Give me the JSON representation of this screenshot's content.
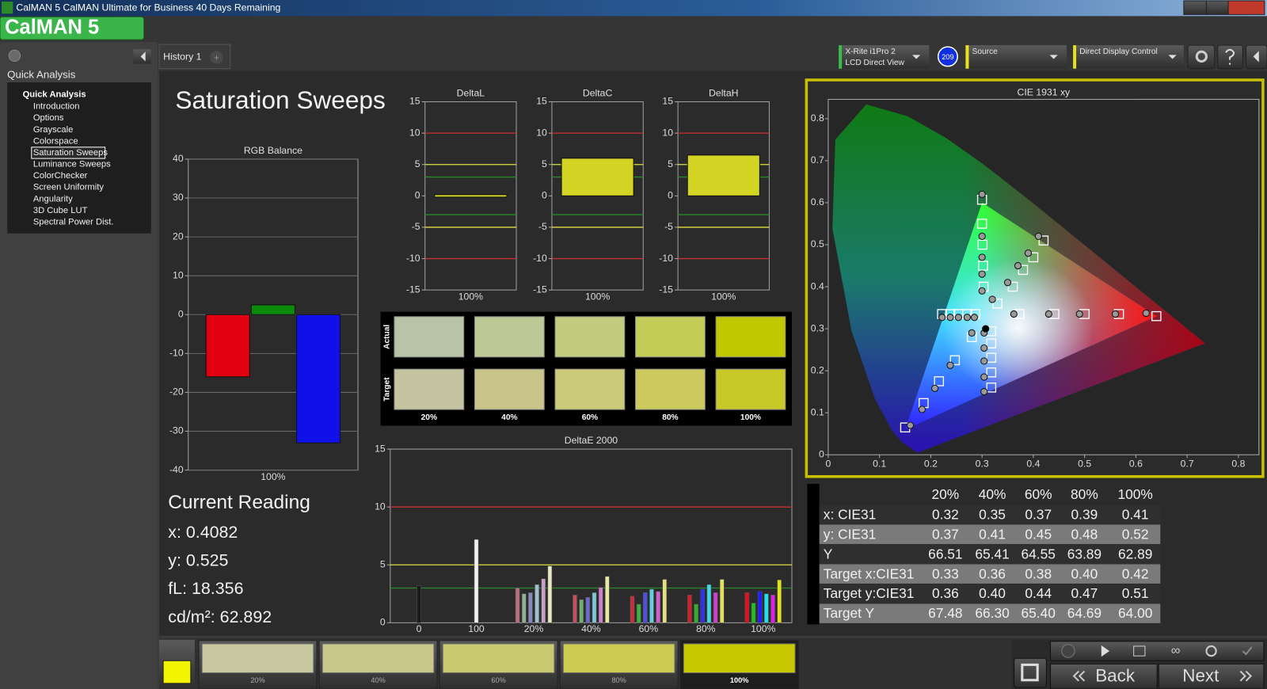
{
  "window": {
    "title": "CalMAN 5 CalMAN Ultimate for Business 40 Days Remaining",
    "logo": "CalMAN 5"
  },
  "sidebar": {
    "heading": "Quick Analysis",
    "tree_root": "Quick Analysis",
    "items": [
      "Introduction",
      "Options",
      "Grayscale",
      "Colorspace",
      "Saturation Sweeps",
      "Luminance Sweeps",
      "ColorChecker",
      "Screen Uniformity",
      "Angularity",
      "3D Cube LUT",
      "Spectral Power Dist."
    ],
    "selected": 4
  },
  "tabs": {
    "history": "History 1",
    "add": "+"
  },
  "toolbar": {
    "meter_name": "X-Rite i1Pro 2",
    "meter_mode": "LCD Direct View",
    "badge": "209",
    "source": "Source",
    "display": "Direct Display Control"
  },
  "page_title": "Saturation Sweeps",
  "chart_data": [
    {
      "type": "bar",
      "title": "RGB Balance",
      "categories": [
        "100%"
      ],
      "series": [
        {
          "color": "#e00010",
          "values": [
            -16
          ]
        },
        {
          "color": "#0a8a0a",
          "values": [
            2.5
          ]
        },
        {
          "color": "#1010e8",
          "values": [
            -33
          ]
        }
      ],
      "ylim": [
        -40,
        40
      ],
      "yticks": [
        -40,
        -30,
        -20,
        -10,
        0,
        10,
        20,
        30,
        40
      ],
      "grid": true
    },
    {
      "type": "bar",
      "title": "DeltaL",
      "categories": [
        "100%"
      ],
      "values": [
        -0.3
      ],
      "color": "#d4d424",
      "ylim": [
        -15,
        15
      ],
      "yticks": [
        -15,
        -10,
        -5,
        0,
        5,
        10,
        15
      ],
      "grid": false,
      "reference_lines": [
        {
          "value": 10,
          "color": "#c83232"
        },
        {
          "value": 5,
          "color": "#e0e040"
        },
        {
          "value": 3,
          "color": "#2a8a2a"
        },
        {
          "value": -3,
          "color": "#2a8a2a"
        },
        {
          "value": -5,
          "color": "#e0e040"
        },
        {
          "value": -10,
          "color": "#c83232"
        }
      ]
    },
    {
      "type": "bar",
      "title": "DeltaC",
      "categories": [
        "100%"
      ],
      "values": [
        6
      ],
      "color": "#d4d424",
      "ylim": [
        -15,
        15
      ],
      "yticks": [
        -15,
        -10,
        -5,
        0,
        5,
        10,
        15
      ],
      "grid": false,
      "reference_lines": [
        {
          "value": 10,
          "color": "#c83232"
        },
        {
          "value": 5,
          "color": "#e0e040"
        },
        {
          "value": 3,
          "color": "#2a8a2a"
        },
        {
          "value": -3,
          "color": "#2a8a2a"
        },
        {
          "value": -5,
          "color": "#e0e040"
        },
        {
          "value": -10,
          "color": "#c83232"
        }
      ]
    },
    {
      "type": "bar",
      "title": "DeltaH",
      "categories": [
        "100%"
      ],
      "values": [
        6.5
      ],
      "color": "#d4d424",
      "ylim": [
        -15,
        15
      ],
      "yticks": [
        -15,
        -10,
        -5,
        0,
        5,
        10,
        15
      ],
      "grid": false,
      "reference_lines": [
        {
          "value": 10,
          "color": "#c83232"
        },
        {
          "value": 5,
          "color": "#e0e040"
        },
        {
          "value": 3,
          "color": "#2a8a2a"
        },
        {
          "value": -3,
          "color": "#2a8a2a"
        },
        {
          "value": -5,
          "color": "#e0e040"
        },
        {
          "value": -10,
          "color": "#c83232"
        }
      ]
    },
    {
      "type": "grouped_bar",
      "title": "DeltaE 2000",
      "categories": [
        "0",
        "100",
        "20%",
        "40%",
        "60%",
        "80%",
        "100%"
      ],
      "values": [
        [
          3.2
        ],
        [
          7.2
        ],
        [
          3.0,
          2.5,
          2.6,
          3.3,
          3.8,
          4.9
        ],
        [
          2.4,
          2.0,
          2.2,
          2.6,
          3.05,
          4.0
        ],
        [
          2.3,
          1.6,
          2.6,
          2.9,
          2.7,
          3.75
        ],
        [
          2.4,
          1.6,
          2.9,
          3.3,
          2.6,
          3.75
        ],
        [
          2.6,
          1.7,
          2.7,
          2.5,
          2.4,
          3.7
        ]
      ],
      "colors": [
        [
          "#1a1a1a"
        ],
        [
          "#f0f0f0"
        ],
        [
          "#b87080",
          "#90b090",
          "#8888c0",
          "#a0c0d0",
          "#c8a0c8",
          "#e8e8c0"
        ],
        [
          "#c05060",
          "#70b070",
          "#6a6ad0",
          "#80c8d8",
          "#d080d0",
          "#e8e8a0"
        ],
        [
          "#c83040",
          "#40b040",
          "#5050e0",
          "#60d0e0",
          "#d060d0",
          "#e0e080"
        ],
        [
          "#d02030",
          "#30b030",
          "#3030f0",
          "#40d8e8",
          "#d040d0",
          "#e0e060"
        ],
        [
          "#e01020",
          "#20c020",
          "#2020ff",
          "#20e0f0",
          "#e020e0",
          "#e0e020"
        ]
      ],
      "ylim": [
        0,
        15
      ],
      "yticks": [
        0,
        5,
        10,
        15
      ],
      "grid": false,
      "reference_lines": [
        {
          "value": 10,
          "color": "#c83232"
        },
        {
          "value": 5,
          "color": "#e0e040"
        },
        {
          "value": 3,
          "color": "#2a8a2a"
        }
      ]
    },
    {
      "type": "scatter",
      "title": "CIE 1931 xy",
      "xlim": [
        0,
        0.84
      ],
      "ylim": [
        0,
        0.846
      ],
      "xticks": [
        0,
        0.1,
        0.2,
        0.3,
        0.4,
        0.5,
        0.6,
        0.7,
        0.8
      ],
      "yticks": [
        0,
        0.1,
        0.2,
        0.3,
        0.4,
        0.5,
        0.6,
        0.7,
        0.8
      ],
      "series": [
        {
          "marker": "square",
          "color": "#ffffff",
          "x": [
            0.373,
            0.441,
            0.5,
            0.567,
            0.64
          ],
          "values": [
            0.335,
            0.335,
            0.335,
            0.335,
            0.33
          ]
        },
        {
          "marker": "circle",
          "color": "#999999",
          "x": [
            0.362,
            0.43,
            0.49,
            0.56,
            0.62
          ],
          "values": [
            0.335,
            0.335,
            0.335,
            0.335,
            0.337
          ]
        },
        {
          "marker": "square",
          "color": "#ffffff",
          "x": [
            0.303,
            0.302,
            0.301,
            0.3,
            0.3
          ],
          "values": [
            0.4,
            0.45,
            0.5,
            0.55,
            0.607
          ]
        },
        {
          "marker": "circle",
          "color": "#999999",
          "x": [
            0.3,
            0.3,
            0.3,
            0.3,
            0.3
          ],
          "values": [
            0.39,
            0.43,
            0.47,
            0.52,
            0.62
          ]
        },
        {
          "marker": "square",
          "color": "#ffffff",
          "x": [
            0.28,
            0.247,
            0.216,
            0.186,
            0.15
          ],
          "values": [
            0.28,
            0.225,
            0.175,
            0.123,
            0.065
          ]
        },
        {
          "marker": "circle",
          "color": "#999999",
          "x": [
            0.28,
            0.238,
            0.208,
            0.183,
            0.16
          ],
          "values": [
            0.29,
            0.213,
            0.158,
            0.108,
            0.07
          ]
        },
        {
          "marker": "square",
          "color": "#ffffff",
          "x": [
            0.287,
            0.271,
            0.254,
            0.238,
            0.222
          ],
          "values": [
            0.335,
            0.335,
            0.335,
            0.335,
            0.335
          ]
        },
        {
          "marker": "circle",
          "color": "#999999",
          "x": [
            0.285,
            0.271,
            0.254,
            0.238,
            0.222
          ],
          "values": [
            0.327,
            0.327,
            0.327,
            0.327,
            0.327
          ]
        },
        {
          "marker": "square",
          "color": "#ffffff",
          "x": [
            0.318,
            0.318,
            0.318,
            0.318,
            0.318
          ],
          "values": [
            0.294,
            0.265,
            0.231,
            0.196,
            0.16
          ]
        },
        {
          "marker": "circle",
          "color": "#999999",
          "x": [
            0.304,
            0.304,
            0.304,
            0.304,
            0.304
          ],
          "values": [
            0.29,
            0.254,
            0.223,
            0.185,
            0.15
          ]
        },
        {
          "marker": "square",
          "color": "#ffffff",
          "x": [
            0.33,
            0.36,
            0.38,
            0.4,
            0.42
          ],
          "values": [
            0.36,
            0.4,
            0.44,
            0.47,
            0.51
          ]
        },
        {
          "marker": "circle",
          "color": "#999999",
          "x": [
            0.32,
            0.35,
            0.37,
            0.39,
            0.41
          ],
          "values": [
            0.37,
            0.41,
            0.45,
            0.48,
            0.52
          ]
        },
        {
          "marker": "circle",
          "color": "#000000",
          "x": [
            0.307
          ],
          "values": [
            0.3
          ]
        }
      ]
    }
  ],
  "swatches": {
    "row_labels": [
      "Actual",
      "Target"
    ],
    "columns": [
      "20%",
      "40%",
      "60%",
      "80%",
      "100%"
    ],
    "actual_colors": [
      "#b8c4a8",
      "#bcc896",
      "#c2cb7e",
      "#c4cc58",
      "#c2c800"
    ],
    "target_colors": [
      "#c4c4a0",
      "#c8c48a",
      "#cbca78",
      "#ccca5c",
      "#c8c828"
    ]
  },
  "current_reading": {
    "title": "Current Reading",
    "lines": [
      "x: 0.4082",
      "y: 0.525",
      "fL: 18.356",
      "cd/m²: 62.892"
    ]
  },
  "table": {
    "header": [
      "20%",
      "40%",
      "60%",
      "80%",
      "100%"
    ],
    "rows": [
      {
        "label": "x: CIE31",
        "values": [
          "0.32",
          "0.35",
          "0.37",
          "0.39",
          "0.41"
        ]
      },
      {
        "label": "y: CIE31",
        "values": [
          "0.37",
          "0.41",
          "0.45",
          "0.48",
          "0.52"
        ]
      },
      {
        "label": "Y",
        "values": [
          "66.51",
          "65.41",
          "64.55",
          "63.89",
          "62.89"
        ]
      },
      {
        "label": "Target x:CIE31",
        "values": [
          "0.33",
          "0.36",
          "0.38",
          "0.40",
          "0.42"
        ]
      },
      {
        "label": "Target y:CIE31",
        "values": [
          "0.36",
          "0.40",
          "0.44",
          "0.47",
          "0.51"
        ]
      },
      {
        "label": "Target Y",
        "values": [
          "67.48",
          "66.30",
          "65.40",
          "64.69",
          "64.00"
        ]
      }
    ]
  },
  "bottom_bar": {
    "current_color": "#f4f400",
    "labels": [
      "20%",
      "40%",
      "60%",
      "80%",
      "100%"
    ],
    "colors": [
      "#c8c8a0",
      "#c8c88a",
      "#c9c970",
      "#cbcb52",
      "#c8c800"
    ],
    "selected": 4,
    "back": "Back",
    "next": "Next"
  }
}
